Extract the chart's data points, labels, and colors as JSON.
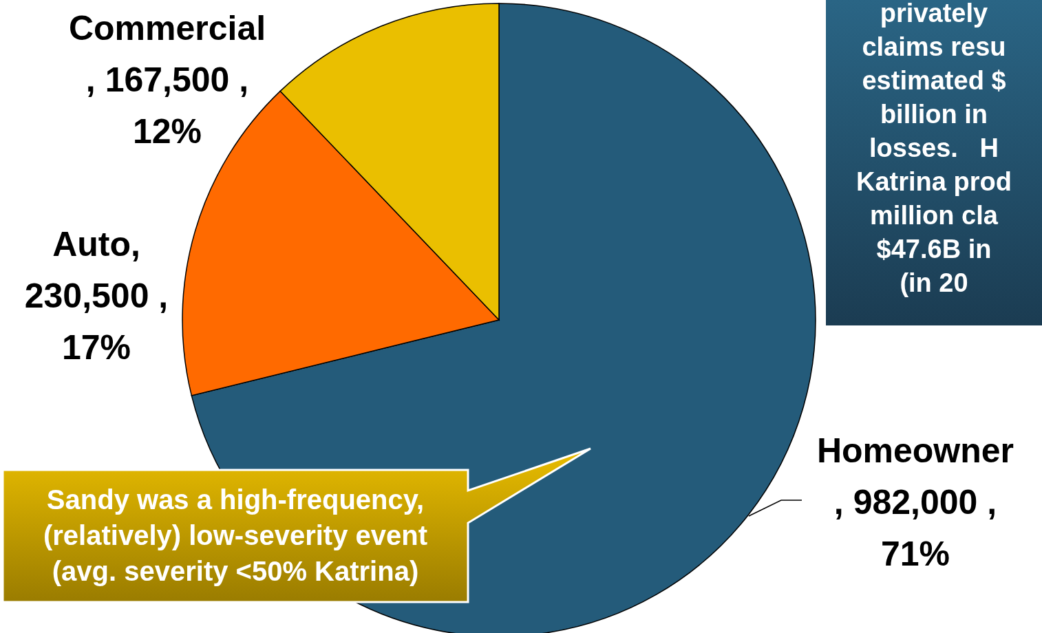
{
  "chart_data": {
    "type": "pie",
    "categories": [
      "Homeowner",
      "Auto",
      "Commercial"
    ],
    "values": [
      982000,
      230500,
      167500
    ],
    "colors": [
      "#245b7a",
      "#ff6a00",
      "#eabf00"
    ],
    "value_labels": [
      "\n, 982,000 ,\n71%",
      ",\n230,500 ,\n17%",
      "\n, 167,500 ,\n12%"
    ],
    "annotations": [
      "privately\nclaims resu\nestimated $\nbillion in\nlosses.   H\nKatrina prod\nmillion cla\n$47.6B in\n(in 20",
      "Sandy was a high-frequency,\n(relatively) low-severity event\n(avg. severity <50% Katrina)"
    ]
  }
}
